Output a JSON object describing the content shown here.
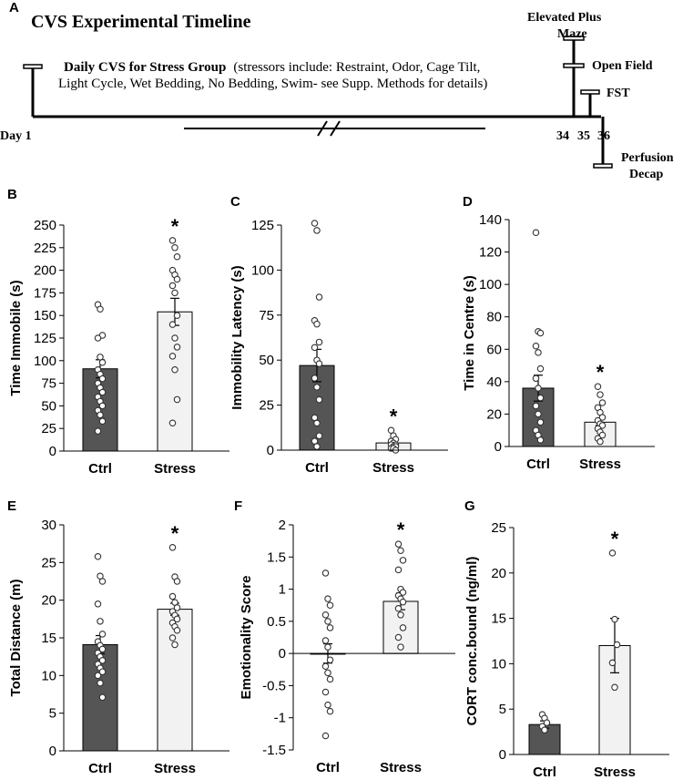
{
  "timeline": {
    "panel_label": "A",
    "title": "CVS Experimental Timeline",
    "daily_text_bold": "Daily CVS for Stress Group",
    "daily_text_rest": "(stressors include: Restraint, Odor, Cage Tilt,",
    "daily_text_line2": "Light Cycle, Wet Bedding, No Bedding, Swim- see Supp. Methods for details)",
    "day1_label": "Day 1",
    "day_labels": [
      "34",
      "35",
      "36"
    ],
    "events": [
      {
        "name": "elevated-plus-maze",
        "lines": [
          "Elevated Plus",
          "Maze"
        ]
      },
      {
        "name": "open-field",
        "lines": [
          "Open Field"
        ]
      },
      {
        "name": "fst",
        "lines": [
          "FST"
        ]
      },
      {
        "name": "perfusion-decap",
        "lines": [
          "Perfusion",
          "Decap"
        ]
      }
    ]
  },
  "colors": {
    "ctrl_bar": "#555555",
    "stress_bar": "#f2f2f2",
    "outline": "#000000"
  },
  "chart_data": [
    {
      "panel": "B",
      "type": "bar",
      "ylabel": "Time Immobile (s)",
      "categories": [
        "Ctrl",
        "Stress"
      ],
      "values": [
        91,
        154
      ],
      "errors": [
        10,
        15
      ],
      "ylim": [
        0,
        250
      ],
      "yticks": [
        0,
        25,
        50,
        75,
        100,
        125,
        150,
        175,
        200,
        225,
        250
      ],
      "significance": [
        null,
        "*"
      ],
      "points": [
        [
          162,
          157,
          128,
          125,
          104,
          98,
          90,
          85,
          80,
          75,
          70,
          65,
          60,
          55,
          50,
          45,
          40,
          33,
          22
        ],
        [
          233,
          225,
          215,
          200,
          195,
          190,
          183,
          175,
          150,
          140,
          125,
          115,
          105,
          90,
          57,
          31
        ]
      ]
    },
    {
      "panel": "C",
      "type": "bar",
      "ylabel": "Immobility Latency (s)",
      "categories": [
        "Ctrl",
        "Stress"
      ],
      "values": [
        47,
        4
      ],
      "errors": [
        9,
        1
      ],
      "ylim": [
        0,
        125
      ],
      "yticks": [
        0,
        25,
        50,
        75,
        100,
        125
      ],
      "significance": [
        null,
        "*"
      ],
      "points": [
        [
          126,
          122,
          85,
          72,
          70,
          60,
          57,
          50,
          48,
          40,
          35,
          28,
          18,
          15,
          8,
          5,
          2
        ],
        [
          11,
          8,
          6,
          5,
          4,
          3,
          3,
          2,
          2,
          1,
          1,
          0
        ]
      ]
    },
    {
      "panel": "D",
      "type": "bar",
      "ylabel": "Time in Centre (s)",
      "categories": [
        "Ctrl",
        "Stress"
      ],
      "values": [
        36,
        15
      ],
      "errors": [
        8,
        2
      ],
      "ylim": [
        0,
        140
      ],
      "yticks": [
        0,
        20,
        40,
        60,
        80,
        100,
        120,
        140
      ],
      "significance": [
        null,
        "*"
      ],
      "points": [
        [
          132,
          71,
          70,
          62,
          58,
          48,
          42,
          36,
          30,
          25,
          20,
          15,
          10,
          7,
          4
        ],
        [
          37,
          32,
          27,
          24,
          21,
          18,
          16,
          14,
          13,
          11,
          9,
          7,
          5,
          3
        ]
      ]
    },
    {
      "panel": "E",
      "type": "bar",
      "ylabel": "Total Distance (m)",
      "categories": [
        "Ctrl",
        "Stress"
      ],
      "values": [
        14.1,
        18.8
      ],
      "errors": [
        1.2,
        0.8
      ],
      "ylim": [
        0,
        30
      ],
      "yticks": [
        0,
        5,
        10,
        15,
        20,
        25,
        30
      ],
      "significance": [
        null,
        "*"
      ],
      "points": [
        [
          25.8,
          23.2,
          22.5,
          19.5,
          17.2,
          15.5,
          14.5,
          14,
          13.5,
          13,
          12.5,
          12,
          11.5,
          11,
          10.5,
          10,
          9,
          7.1
        ],
        [
          27,
          23.1,
          22.5,
          20.5,
          19.7,
          19,
          18.5,
          18,
          17.5,
          17,
          16.5,
          16,
          15,
          14.1
        ]
      ]
    },
    {
      "panel": "F",
      "type": "bar",
      "ylabel": "Emotionality Score",
      "categories": [
        "Ctrl",
        "Stress"
      ],
      "values": [
        0,
        0.81
      ],
      "errors": [
        0.15,
        0.13
      ],
      "ylim": [
        -1.5,
        2
      ],
      "yticks": [
        -1.5,
        -1,
        -0.5,
        0,
        0.5,
        1,
        1.5,
        2
      ],
      "significance": [
        null,
        "*"
      ],
      "points": [
        [
          1.25,
          0.85,
          0.75,
          0.6,
          0.5,
          0.4,
          0.2,
          0.1,
          -0.1,
          -0.2,
          -0.3,
          -0.4,
          -0.6,
          -0.8,
          -0.9,
          -1.28
        ],
        [
          1.7,
          1.6,
          1.45,
          1.3,
          1.0,
          0.95,
          0.9,
          0.85,
          0.8,
          0.7,
          0.6,
          0.4,
          0.25,
          0.1
        ]
      ]
    },
    {
      "panel": "G",
      "type": "bar",
      "ylabel": "CORT conc.bound (ng/ml)",
      "categories": [
        "Ctrl",
        "Stress"
      ],
      "values": [
        3.3,
        12.0
      ],
      "errors": [
        0.4,
        3.0
      ],
      "ylim": [
        0,
        25
      ],
      "yticks": [
        0,
        5,
        10,
        15,
        20,
        25
      ],
      "significance": [
        null,
        "*"
      ],
      "points": [
        [
          4.4,
          4.0,
          3.5,
          3.1,
          2.7
        ],
        [
          22.2,
          14.9,
          12.1,
          10.1,
          7.4
        ]
      ]
    }
  ]
}
